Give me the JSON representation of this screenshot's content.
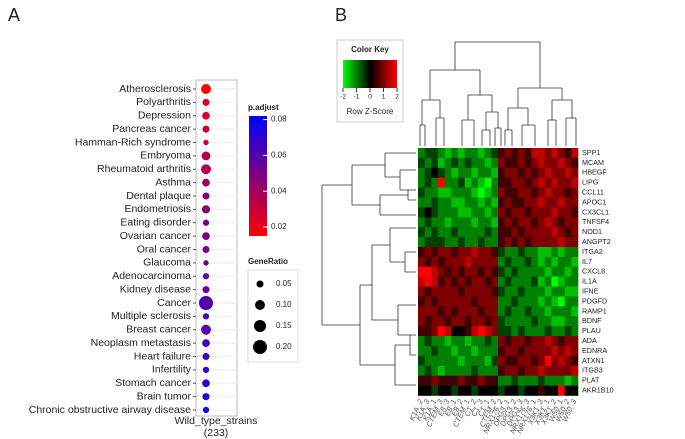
{
  "chart_data": [
    {
      "type": "dot",
      "label": "A",
      "categories": [
        "Atherosclerosis",
        "Polyarthritis",
        "Depression",
        "Pancreas cancer",
        "Hamman-Rich syndrome",
        "Embryoma",
        "Rheumatoid arthritis",
        "Asthma",
        "Dental plaque",
        "Endometriosis",
        "Eating disorder",
        "Ovarian cancer",
        "Oral cancer",
        "Glaucoma",
        "Adenocarcinoma",
        "Kidney disease",
        "Cancer",
        "Multiple sclerosis",
        "Breast cancer",
        "Neoplasm metastasis",
        "Heart failure",
        "Infertility",
        "Stomach cancer",
        "Brain tumor",
        "Chronic obstructive airway disease"
      ],
      "x_category": "Wild_type_strains",
      "x_category_count": "(233)",
      "p_adjust": [
        0.015,
        0.025,
        0.025,
        0.03,
        0.03,
        0.035,
        0.035,
        0.04,
        0.045,
        0.045,
        0.05,
        0.05,
        0.05,
        0.055,
        0.055,
        0.055,
        0.06,
        0.06,
        0.06,
        0.065,
        0.065,
        0.07,
        0.07,
        0.075,
        0.08
      ],
      "gene_ratio": [
        0.1,
        0.05,
        0.06,
        0.05,
        0.03,
        0.08,
        0.1,
        0.06,
        0.05,
        0.07,
        0.04,
        0.06,
        0.05,
        0.03,
        0.04,
        0.05,
        0.2,
        0.04,
        0.1,
        0.06,
        0.05,
        0.04,
        0.06,
        0.05,
        0.04
      ],
      "color_title": "p.adjust",
      "colors": [
        "#ff0000",
        "#0000ff"
      ],
      "clim": [
        0.015,
        0.082
      ],
      "cticks": [
        0.02,
        0.04,
        0.06,
        0.08
      ],
      "size_title": "GeneRatio",
      "size_lim": [
        0,
        0.2
      ],
      "size_ticks": [
        0.05,
        {
          "value": 0.1,
          "label": "0.10"
        },
        0.15,
        {
          "value": 0.2,
          "label": "0.20"
        }
      ],
      "grid": true
    },
    {
      "type": "heatmap",
      "label": "B",
      "rows": [
        "SPP1",
        "MCAM",
        "HBEGF",
        "LIPG",
        "CCL11",
        "APOC1",
        "CX3CL1",
        "TNFSF4",
        "NOD1",
        "ANGPT2",
        "ITGA2",
        "IL7",
        "CXCL8",
        "IL1A",
        "IFNE",
        "PDGFD",
        "RAMP1",
        "BDNF",
        "PLAU",
        "ADA",
        "EDNRA",
        "ATXN1",
        "ITGB3",
        "PLAT",
        "AKR1B10"
      ],
      "columns": [
        "K1A_2",
        "K1A_3",
        "K1A_1",
        "CTEM_3",
        "E8_3",
        "E8_1",
        "E8_2",
        "CTEM_1",
        "C1_2",
        "C1_3",
        "C1_1",
        "CTEM_2",
        "NRX176_2",
        "DPG3_1",
        "DPG3_2",
        "DPG3_3",
        "NRX176_3",
        "NRX176_1",
        "X3K1_3",
        "X3K1_1",
        "X3K1_2",
        "W50_1",
        "W50_2",
        "W50_3"
      ],
      "values": [
        [
          -1,
          -0.5,
          -0.5,
          -1,
          -1.5,
          -1,
          -1.5,
          -1,
          -1,
          -1.5,
          -1,
          -0.5,
          0.5,
          1,
          0.5,
          1,
          0.5,
          1.5,
          1.5,
          1,
          1.5,
          1,
          0.5,
          1.5
        ],
        [
          -0.5,
          -1,
          -0.5,
          -1.5,
          -1,
          -0.5,
          -1,
          -0.5,
          -1,
          -1,
          -1.5,
          -1,
          1,
          0.5,
          0.5,
          1,
          0.5,
          1,
          1.5,
          1,
          1,
          1.5,
          1,
          0.5
        ],
        [
          -1,
          -0.5,
          0,
          -0.5,
          -1,
          -1.5,
          -1,
          -1,
          -1.5,
          -1,
          -1,
          -1.5,
          0.5,
          1,
          1,
          0.5,
          1,
          0.5,
          1,
          1.5,
          1,
          1,
          1.5,
          1
        ],
        [
          -1,
          -0.5,
          -1,
          2,
          -1,
          -1,
          -0.5,
          -1.5,
          -1,
          -1.5,
          -2,
          -1,
          0.5,
          0.5,
          1,
          1,
          0.5,
          1,
          1.5,
          1,
          1.5,
          1,
          1,
          1.5
        ],
        [
          -0.5,
          -1,
          -1,
          -1.5,
          -1.5,
          -1,
          -1,
          -1,
          -1.5,
          -2,
          -1.5,
          -1,
          1,
          0.5,
          0.5,
          1,
          1,
          0.5,
          1,
          1.5,
          1,
          1,
          0.5,
          1
        ],
        [
          -1,
          -1,
          -0.5,
          -1,
          -1,
          -1.5,
          -1.5,
          -1,
          -1,
          -1.5,
          -1,
          -1.5,
          0.5,
          1,
          0.5,
          0.5,
          1,
          1,
          1.5,
          1,
          1,
          1.5,
          1,
          1
        ],
        [
          -0.5,
          0,
          -0.5,
          -1,
          -1,
          -1,
          -1.5,
          -1.5,
          -1,
          -1,
          -1.5,
          -1,
          1,
          0.5,
          1,
          1,
          0.5,
          1,
          1,
          1,
          1.5,
          1,
          1,
          0.5
        ],
        [
          -1,
          -0.5,
          -1,
          -1,
          -1.5,
          -1,
          -1,
          -1,
          -1.5,
          -1,
          -1,
          -1.5,
          0.5,
          1,
          0.5,
          1,
          1,
          0.5,
          1,
          1.5,
          1,
          0.5,
          1,
          1
        ],
        [
          -0.5,
          -1,
          -0.5,
          -1,
          -1,
          -0.5,
          -1,
          -1,
          -1,
          -1,
          -0.5,
          -1,
          0.5,
          0.5,
          1,
          0.5,
          1,
          1,
          1,
          1,
          1.5,
          1,
          0.5,
          1
        ],
        [
          -1,
          -0.5,
          -0.5,
          -0.5,
          -1,
          -1,
          -0.5,
          -1,
          -1,
          -0.5,
          -1,
          -1,
          0.5,
          1,
          0.5,
          1,
          0.5,
          1,
          1,
          1,
          1,
          1.5,
          1,
          1
        ],
        [
          0.5,
          1,
          0.5,
          1,
          1,
          0.5,
          1,
          1,
          1.5,
          1,
          1,
          0.5,
          -0.5,
          -1,
          -1,
          -0.5,
          -1,
          -1,
          -1.5,
          -1.5,
          -1,
          -1.5,
          -1,
          -1
        ],
        [
          1,
          0.5,
          1,
          0.5,
          1,
          1,
          1,
          1.5,
          1,
          1,
          1,
          1,
          -1,
          -0.5,
          -1,
          -1,
          -0.5,
          -1,
          -1.5,
          -1,
          -1.5,
          -1,
          -1,
          -1.5
        ],
        [
          2,
          2,
          1.5,
          1,
          0.5,
          1,
          0.5,
          1,
          1,
          0.5,
          1,
          0.5,
          -0.5,
          -1,
          -0.5,
          -1,
          -1,
          -1,
          -1,
          -1.5,
          -1,
          -1,
          -1.5,
          -1
        ],
        [
          1.5,
          2,
          1.5,
          0.5,
          1,
          0.5,
          1,
          0.5,
          1,
          1,
          0.5,
          1,
          -1,
          -0.5,
          -1,
          -1,
          -1,
          -0.5,
          -1.5,
          -1,
          -2,
          -1.5,
          -1,
          -1
        ],
        [
          1,
          0.5,
          1,
          1,
          1,
          1,
          0.5,
          1,
          1,
          1,
          1,
          0.5,
          -0.5,
          -1,
          -1,
          -0.5,
          -1,
          -1,
          -1,
          -1.5,
          -1,
          -1,
          -1.5,
          -1.5
        ],
        [
          0.5,
          1,
          0.5,
          1,
          1,
          1,
          1,
          1,
          0.5,
          1,
          1,
          1,
          -1,
          -1,
          -0.5,
          -1,
          -1,
          -1,
          -1.5,
          -1,
          -1.5,
          -2,
          -1,
          -1
        ],
        [
          1,
          1,
          1,
          0.5,
          1,
          0.5,
          1,
          1,
          1,
          0.5,
          1,
          1,
          -1,
          -0.5,
          -1,
          -1,
          -0.5,
          -1,
          -1,
          -1.5,
          -1,
          -1,
          -1,
          -1.5
        ],
        [
          1,
          0.5,
          1,
          1,
          0.5,
          1,
          1,
          0.5,
          1,
          1,
          0.5,
          1,
          -0.5,
          -1,
          -1,
          -1,
          -1,
          -0.5,
          -1,
          -1,
          -1.5,
          -1.5,
          -1,
          -1
        ],
        [
          0.5,
          0.5,
          1,
          2,
          1.5,
          0,
          0,
          0.5,
          1.5,
          2,
          1.5,
          1,
          -0.5,
          -0.5,
          -1,
          -0.5,
          -1,
          -1,
          -1,
          -0.5,
          -1,
          -1,
          -0.5,
          -1
        ],
        [
          -1,
          -0.5,
          -1,
          -1,
          -1.5,
          -1,
          -1,
          -1.5,
          -1,
          -1,
          -0.5,
          -1,
          1,
          0.5,
          1,
          1,
          0.5,
          1,
          1,
          1.5,
          1,
          0.5,
          1,
          1
        ],
        [
          -1,
          -1,
          -0.5,
          -1,
          -1,
          -1.5,
          -1,
          -1,
          -1.5,
          -1,
          -1,
          -1,
          0.5,
          1,
          1,
          0.5,
          1,
          1,
          1,
          1,
          1.5,
          1,
          1.5,
          1
        ],
        [
          -0.5,
          -1,
          -1,
          -1,
          -1,
          -1,
          -1.5,
          -1,
          -1,
          -1,
          -1.5,
          -0.5,
          1,
          0.5,
          0.5,
          1,
          1,
          0.5,
          1,
          2,
          1,
          1.5,
          1,
          0.5
        ],
        [
          -1,
          -0.5,
          -1,
          -1.5,
          -1,
          -1,
          -1,
          -1,
          -0.5,
          -1,
          -1,
          -1,
          0.5,
          1,
          1,
          0.5,
          1,
          1,
          1.5,
          1,
          1,
          1,
          1,
          1.5
        ],
        [
          0.5,
          0.5,
          1,
          0.5,
          0.5,
          0.5,
          1,
          0.5,
          0.5,
          1,
          0.5,
          0.5,
          -1,
          -1,
          -0.5,
          -1,
          -1,
          -1,
          -0.5,
          -1,
          -1,
          -1,
          -1.5,
          -1
        ],
        [
          0,
          0,
          -0.5,
          0,
          0,
          -0.5,
          0,
          0,
          -0.5,
          0,
          0,
          0,
          -0.5,
          0,
          0,
          -0.5,
          0,
          0,
          0.5,
          0,
          0,
          2,
          0,
          0
        ]
      ],
      "key_title": "Color Key",
      "key_label": "Row Z-Score",
      "colors": [
        "#00ff00",
        "#000000",
        "#ff0000"
      ],
      "clim": [
        -2,
        2
      ],
      "key_ticks": [
        -2,
        -1,
        0,
        1,
        2
      ]
    }
  ]
}
